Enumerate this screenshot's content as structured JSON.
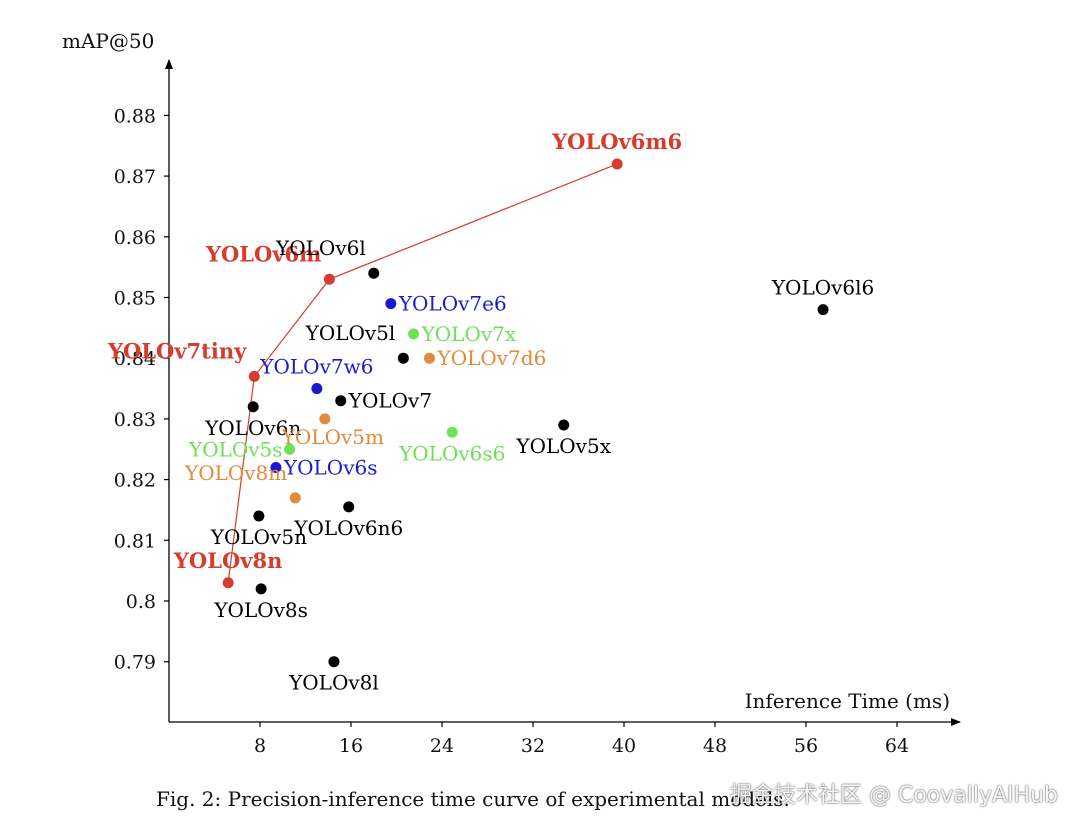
{
  "chart_data": {
    "type": "scatter",
    "ylabel": "mAP@50",
    "xlabel": "Inference Time (ms)",
    "xlim": [
      0,
      70
    ],
    "ylim": [
      0.78,
      0.894
    ],
    "x_ticks": [
      8,
      16,
      24,
      32,
      40,
      48,
      56,
      64
    ],
    "y_ticks": [
      0.79,
      0.8,
      0.81,
      0.82,
      0.83,
      0.84,
      0.85,
      0.86,
      0.87,
      0.88
    ],
    "y_tick_labels": [
      "0.79",
      "0.8",
      "0.81",
      "0.82",
      "0.83",
      "0.84",
      "0.85",
      "0.86",
      "0.87",
      "0.88"
    ],
    "grid": false,
    "frontier": {
      "color": "#d63b2e",
      "points": [
        [
          5.2,
          0.803
        ],
        [
          7.5,
          0.837
        ],
        [
          14.1,
          0.853
        ],
        [
          39.4,
          0.872
        ]
      ]
    },
    "points": [
      {
        "label": "YOLOv6m6",
        "x": 39.4,
        "y": 0.872,
        "color": "#d63b2e",
        "bold": true,
        "anchor": "above"
      },
      {
        "label": "YOLOv6m",
        "x": 14.1,
        "y": 0.853,
        "color": "#d63b2e",
        "bold": true,
        "anchor": "above-left"
      },
      {
        "label": "YOLOv7tiny",
        "x": 7.5,
        "y": 0.837,
        "color": "#d63b2e",
        "bold": true,
        "anchor": "above-left"
      },
      {
        "label": "YOLOv8n",
        "x": 5.2,
        "y": 0.803,
        "color": "#d63b2e",
        "bold": true,
        "anchor": "above"
      },
      {
        "label": "YOLOv6l",
        "x": 18.0,
        "y": 0.854,
        "color": "#000000",
        "bold": false,
        "anchor": "above-left"
      },
      {
        "label": "YOLOv7e6",
        "x": 19.5,
        "y": 0.849,
        "color": "#1a1acc",
        "bold": false,
        "anchor": "right"
      },
      {
        "label": "YOLOv7x",
        "x": 21.5,
        "y": 0.844,
        "color": "#6ee05a",
        "bold": false,
        "anchor": "right"
      },
      {
        "label": "YOLOv5l",
        "x": 20.6,
        "y": 0.84,
        "color": "#000000",
        "bold": false,
        "anchor": "above-left"
      },
      {
        "label": "YOLOv7d6",
        "x": 22.9,
        "y": 0.84,
        "color": "#e28a3c",
        "bold": false,
        "anchor": "right"
      },
      {
        "label": "YOLOv7w6",
        "x": 13.0,
        "y": 0.835,
        "color": "#1a1acc",
        "bold": false,
        "anchor": "above"
      },
      {
        "label": "YOLOv7",
        "x": 15.1,
        "y": 0.833,
        "color": "#000000",
        "bold": false,
        "anchor": "right"
      },
      {
        "label": "YOLOv6n",
        "x": 7.4,
        "y": 0.832,
        "color": "#000000",
        "bold": false,
        "anchor": "below"
      },
      {
        "label": "YOLOv5m",
        "x": 13.7,
        "y": 0.83,
        "color": "#e28a3c",
        "bold": false,
        "anchor": "below-left"
      },
      {
        "label": "YOLOv5x",
        "x": 34.7,
        "y": 0.829,
        "color": "#000000",
        "bold": false,
        "anchor": "below"
      },
      {
        "label": "YOLOv6s6",
        "x": 24.9,
        "y": 0.8278,
        "color": "#6ee05a",
        "bold": false,
        "anchor": "below"
      },
      {
        "label": "YOLOv5s",
        "x": 10.6,
        "y": 0.825,
        "color": "#6ee05a",
        "bold": false,
        "anchor": "left"
      },
      {
        "label": "YOLOv6s",
        "x": 9.4,
        "y": 0.822,
        "color": "#1a1acc",
        "bold": false,
        "anchor": "right"
      },
      {
        "label": "YOLOv8m",
        "x": 11.1,
        "y": 0.817,
        "color": "#e28a3c",
        "bold": false,
        "anchor": "above-left"
      },
      {
        "label": "YOLOv6n6",
        "x": 15.8,
        "y": 0.8155,
        "color": "#000000",
        "bold": false,
        "anchor": "below"
      },
      {
        "label": "YOLOv5n",
        "x": 7.9,
        "y": 0.814,
        "color": "#000000",
        "bold": false,
        "anchor": "below"
      },
      {
        "label": "YOLOv8s",
        "x": 8.1,
        "y": 0.802,
        "color": "#000000",
        "bold": false,
        "anchor": "below"
      },
      {
        "label": "YOLOv8l",
        "x": 14.5,
        "y": 0.79,
        "color": "#000000",
        "bold": false,
        "anchor": "below"
      },
      {
        "label": "YOLOv6l6",
        "x": 57.5,
        "y": 0.848,
        "color": "#000000",
        "bold": false,
        "anchor": "above"
      }
    ]
  },
  "caption": "Fig. 2: Precision-inference time curve of experimental models.",
  "watermark": "掘金技术社区 @ CoovallyAIHub"
}
